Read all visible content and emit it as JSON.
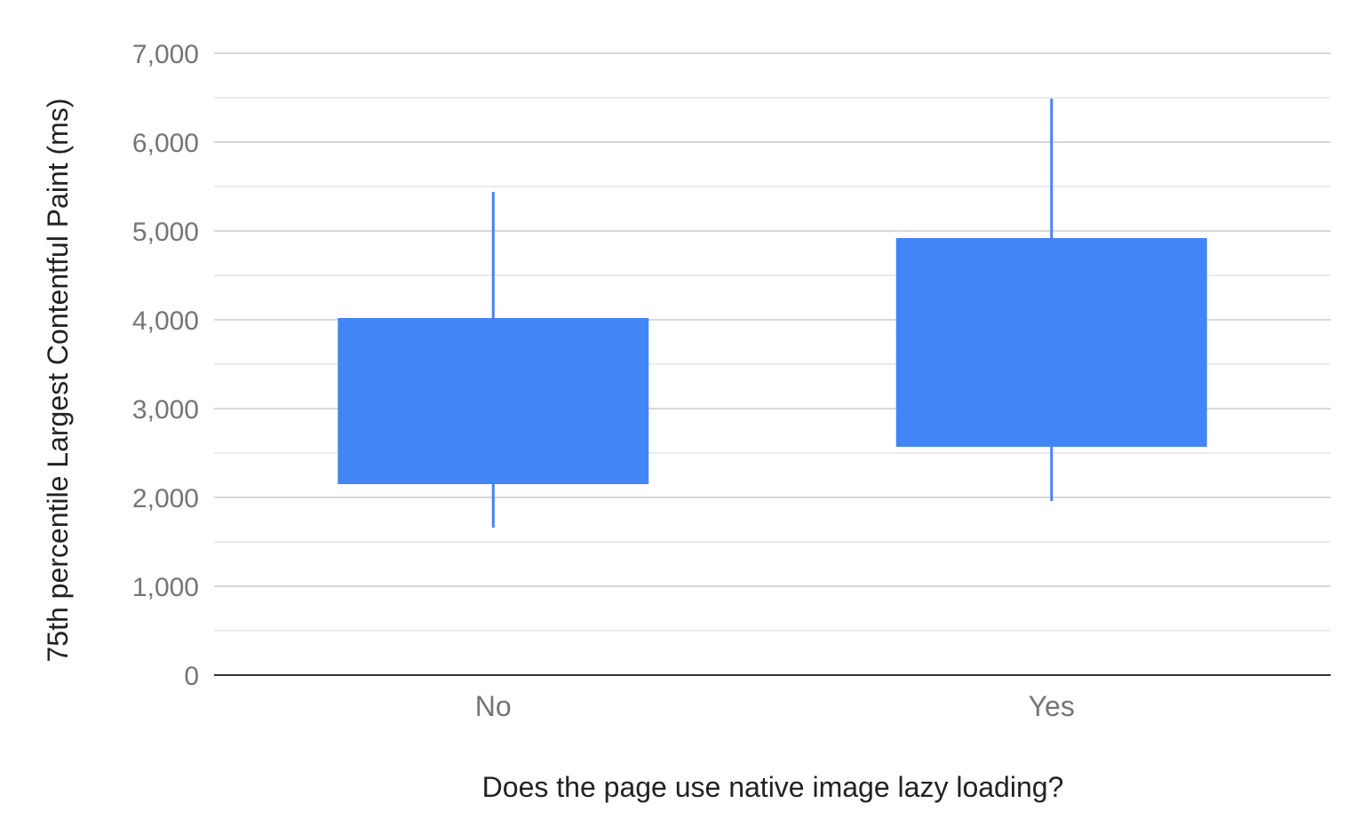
{
  "chart_data": {
    "type": "candlestick",
    "title": "",
    "xlabel": "Does the page use native image lazy loading?",
    "ylabel": "75th percentile Largest Contentful Paint (ms)",
    "ylim": [
      0,
      7000
    ],
    "yticks": [
      0,
      1000,
      2000,
      3000,
      4000,
      5000,
      6000,
      7000
    ],
    "ytick_labels": [
      "0",
      "1,000",
      "2,000",
      "3,000",
      "4,000",
      "5,000",
      "6,000",
      "7,000"
    ],
    "grid": true,
    "categories": [
      "No",
      "Yes"
    ],
    "series": [
      {
        "low": 1660,
        "open": 2150,
        "close": 4020,
        "high": 5440
      },
      {
        "low": 1960,
        "open": 2570,
        "close": 4920,
        "high": 6490
      }
    ],
    "color": "#4285f4"
  }
}
